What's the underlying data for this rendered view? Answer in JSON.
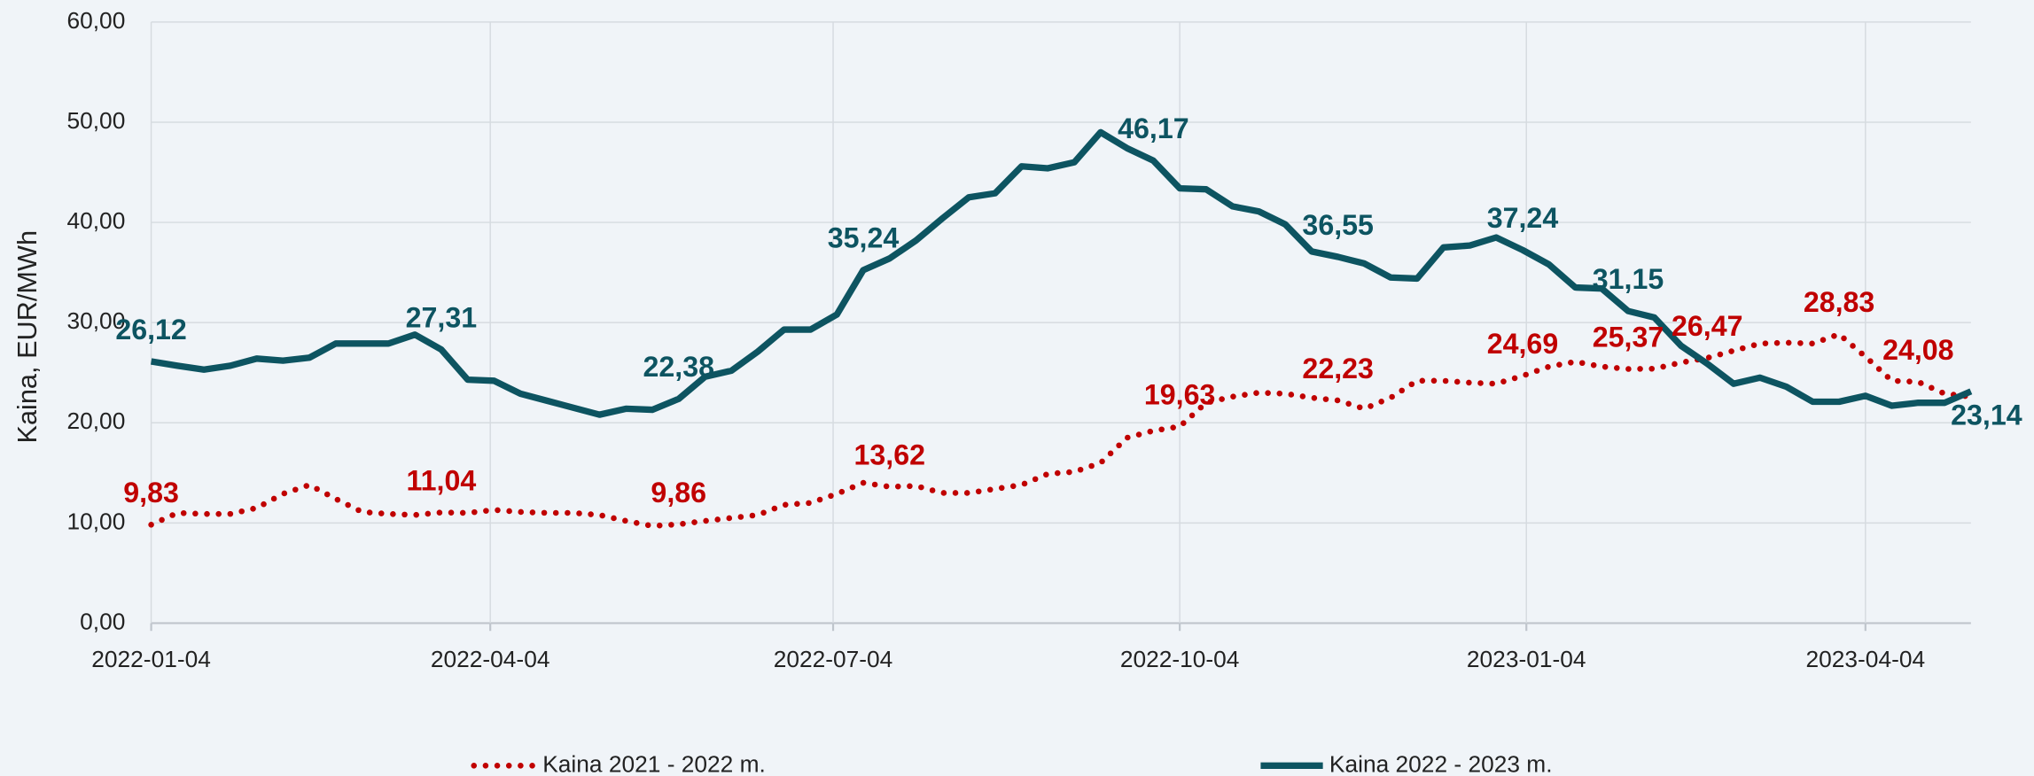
{
  "chart_data": {
    "type": "line",
    "y_label": "Kaina, EUR/MWh",
    "x": [
      "2022-01-04",
      "2022-01-11",
      "2022-01-18",
      "2022-01-25",
      "2022-02-01",
      "2022-02-08",
      "2022-02-15",
      "2022-02-22",
      "2022-03-01",
      "2022-03-08",
      "2022-03-15",
      "2022-03-22",
      "2022-03-29",
      "2022-04-05",
      "2022-04-12",
      "2022-04-19",
      "2022-04-26",
      "2022-05-03",
      "2022-05-10",
      "2022-05-17",
      "2022-05-24",
      "2022-05-31",
      "2022-06-07",
      "2022-06-14",
      "2022-06-21",
      "2022-06-28",
      "2022-07-05",
      "2022-07-12",
      "2022-07-19",
      "2022-07-26",
      "2022-08-02",
      "2022-08-09",
      "2022-08-16",
      "2022-08-23",
      "2022-08-30",
      "2022-09-06",
      "2022-09-13",
      "2022-09-20",
      "2022-09-27",
      "2022-10-04",
      "2022-10-11",
      "2022-10-18",
      "2022-10-25",
      "2022-11-01",
      "2022-11-08",
      "2022-11-15",
      "2022-11-22",
      "2022-11-29",
      "2022-12-06",
      "2022-12-13",
      "2022-12-20",
      "2022-12-27",
      "2023-01-03",
      "2023-01-10",
      "2023-01-17",
      "2023-01-24",
      "2023-01-31",
      "2023-02-07",
      "2023-02-14",
      "2023-02-21",
      "2023-02-28",
      "2023-03-07",
      "2023-03-14",
      "2023-03-21",
      "2023-03-28",
      "2023-04-04",
      "2023-04-11",
      "2023-04-18",
      "2023-04-25",
      "2023-05-02"
    ],
    "series": [
      {
        "name": "Kaina 2021 - 2022 m.",
        "color": "#c00000",
        "style": "dotted",
        "values": [
          9.83,
          11.0,
          10.9,
          10.9,
          11.5,
          12.9,
          13.8,
          12.4,
          11.1,
          10.9,
          10.8,
          11.04,
          11.0,
          11.3,
          11.1,
          11.0,
          11.0,
          10.8,
          10.2,
          9.7,
          9.86,
          10.2,
          10.5,
          10.8,
          11.8,
          12.0,
          12.9,
          14.0,
          13.62,
          13.7,
          13.0,
          13.0,
          13.4,
          13.8,
          14.9,
          15.1,
          16.0,
          18.5,
          19.2,
          19.63,
          22.0,
          22.6,
          23.0,
          22.9,
          22.5,
          22.23,
          21.4,
          22.5,
          24.2,
          24.2,
          24.0,
          23.9,
          24.69,
          25.6,
          26.1,
          25.6,
          25.37,
          25.4,
          26.0,
          26.47,
          27.2,
          27.9,
          28.0,
          27.9,
          28.83,
          26.6,
          24.2,
          24.08,
          22.9,
          22.6
        ],
        "value_labels": [
          "9,83",
          null,
          null,
          null,
          null,
          null,
          null,
          null,
          null,
          null,
          null,
          "11,04",
          null,
          null,
          null,
          null,
          null,
          null,
          null,
          null,
          "9,86",
          null,
          null,
          null,
          null,
          null,
          null,
          null,
          "13,62",
          null,
          null,
          null,
          null,
          null,
          null,
          null,
          null,
          null,
          null,
          "19,63",
          null,
          null,
          null,
          null,
          null,
          "22,23",
          null,
          null,
          null,
          null,
          null,
          null,
          "24,69",
          null,
          null,
          null,
          "25,37",
          null,
          null,
          "26,47",
          null,
          null,
          null,
          null,
          "28,83",
          null,
          null,
          "24,08",
          null,
          null
        ]
      },
      {
        "name": "Kaina 2022 - 2023 m.",
        "color": "#0d5461",
        "style": "solid",
        "values": [
          26.12,
          25.7,
          25.3,
          25.7,
          26.4,
          26.2,
          26.5,
          27.9,
          27.9,
          27.9,
          28.8,
          27.31,
          24.3,
          24.2,
          22.9,
          22.2,
          21.5,
          20.8,
          21.4,
          21.3,
          22.38,
          24.6,
          25.2,
          27.1,
          29.3,
          29.3,
          30.8,
          35.24,
          36.4,
          38.2,
          40.4,
          42.5,
          42.9,
          45.6,
          45.4,
          46.0,
          49.0,
          47.4,
          46.17,
          43.4,
          43.3,
          41.6,
          41.1,
          39.8,
          37.1,
          36.55,
          35.9,
          34.5,
          34.4,
          37.5,
          37.7,
          38.5,
          37.24,
          35.8,
          33.5,
          33.4,
          31.15,
          30.5,
          27.7,
          25.9,
          23.9,
          24.5,
          23.6,
          22.1,
          22.1,
          22.7,
          21.7,
          22.0,
          22.0,
          23.14
        ],
        "value_labels": [
          "26,12",
          null,
          null,
          null,
          null,
          null,
          null,
          null,
          null,
          null,
          null,
          "27,31",
          null,
          null,
          null,
          null,
          null,
          null,
          null,
          null,
          "22,38",
          null,
          null,
          null,
          null,
          null,
          null,
          "35,24",
          null,
          null,
          null,
          null,
          null,
          null,
          null,
          null,
          null,
          null,
          "46,17",
          null,
          null,
          null,
          null,
          null,
          null,
          "36,55",
          null,
          null,
          null,
          null,
          null,
          null,
          "37,24",
          null,
          null,
          null,
          "31,15",
          null,
          null,
          null,
          null,
          null,
          null,
          null,
          null,
          null,
          null,
          null,
          null,
          "23,14"
        ]
      }
    ],
    "xlim": [
      "2022-01-04",
      "2023-05-02"
    ],
    "xticks": [
      "2022-01-04",
      "2022-04-04",
      "2022-07-04",
      "2022-10-04",
      "2023-01-04",
      "2023-04-04"
    ],
    "ylim": [
      0,
      60
    ],
    "yticks": [
      {
        "value": 0,
        "label": "0,00"
      },
      {
        "value": 10,
        "label": "10,00"
      },
      {
        "value": 20,
        "label": "20,00"
      },
      {
        "value": 30,
        "label": "30,00"
      },
      {
        "value": 40,
        "label": "40,00"
      },
      {
        "value": 50,
        "label": "50,00"
      },
      {
        "value": 60,
        "label": "60,00"
      }
    ],
    "grid": true,
    "legend": "bottom"
  }
}
